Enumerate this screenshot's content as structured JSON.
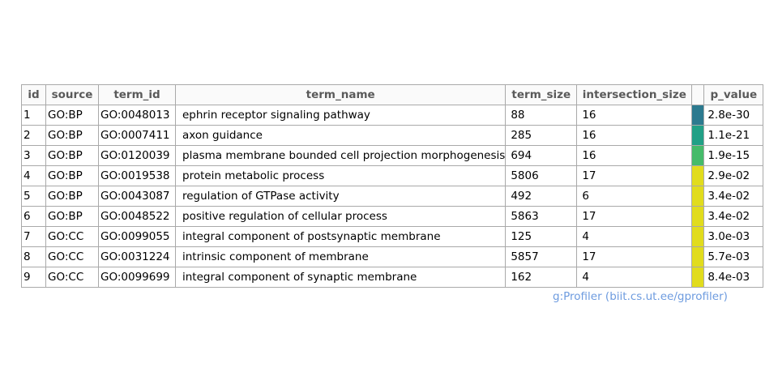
{
  "chart_data": {
    "type": "table",
    "columns": [
      "id",
      "source",
      "term_id",
      "term_name",
      "term_size",
      "intersection_size",
      "",
      "p_value"
    ],
    "rows": [
      {
        "id": "1",
        "source": "GO:BP",
        "term_id": "GO:0048013",
        "term_name": "ephrin receptor signaling pathway",
        "term_size": "88",
        "intersection_size": "16",
        "p_value": "2.8e-30",
        "color": "#2c7a8f"
      },
      {
        "id": "2",
        "source": "GO:BP",
        "term_id": "GO:0007411",
        "term_name": "axon guidance",
        "term_size": "285",
        "intersection_size": "16",
        "p_value": "1.1e-21",
        "color": "#21a086"
      },
      {
        "id": "3",
        "source": "GO:BP",
        "term_id": "GO:0120039",
        "term_name": "plasma membrane bounded cell projection morphogenesis",
        "term_size": "694",
        "intersection_size": "16",
        "p_value": "1.9e-15",
        "color": "#45bb6a"
      },
      {
        "id": "4",
        "source": "GO:BP",
        "term_id": "GO:0019538",
        "term_name": "protein metabolic process",
        "term_size": "5806",
        "intersection_size": "17",
        "p_value": "2.9e-02",
        "color": "#e1dc1d"
      },
      {
        "id": "5",
        "source": "GO:BP",
        "term_id": "GO:0043087",
        "term_name": "regulation of GTPase activity",
        "term_size": "492",
        "intersection_size": "6",
        "p_value": "3.4e-02",
        "color": "#e1dc1d"
      },
      {
        "id": "6",
        "source": "GO:BP",
        "term_id": "GO:0048522",
        "term_name": "positive regulation of cellular process",
        "term_size": "5863",
        "intersection_size": "17",
        "p_value": "3.4e-02",
        "color": "#e1dc1d"
      },
      {
        "id": "7",
        "source": "GO:CC",
        "term_id": "GO:0099055",
        "term_name": "integral component of postsynaptic membrane",
        "term_size": "125",
        "intersection_size": "4",
        "p_value": "3.0e-03",
        "color": "#e1dc1d"
      },
      {
        "id": "8",
        "source": "GO:CC",
        "term_id": "GO:0031224",
        "term_name": "intrinsic component of membrane",
        "term_size": "5857",
        "intersection_size": "17",
        "p_value": "5.7e-03",
        "color": "#e1dc1d"
      },
      {
        "id": "9",
        "source": "GO:CC",
        "term_id": "GO:0099699",
        "term_name": "integral component of synaptic membrane",
        "term_size": "162",
        "intersection_size": "4",
        "p_value": "8.4e-03",
        "color": "#e1dc1d"
      }
    ],
    "credit": "g:Profiler (biit.cs.ut.ee/gprofiler)"
  }
}
